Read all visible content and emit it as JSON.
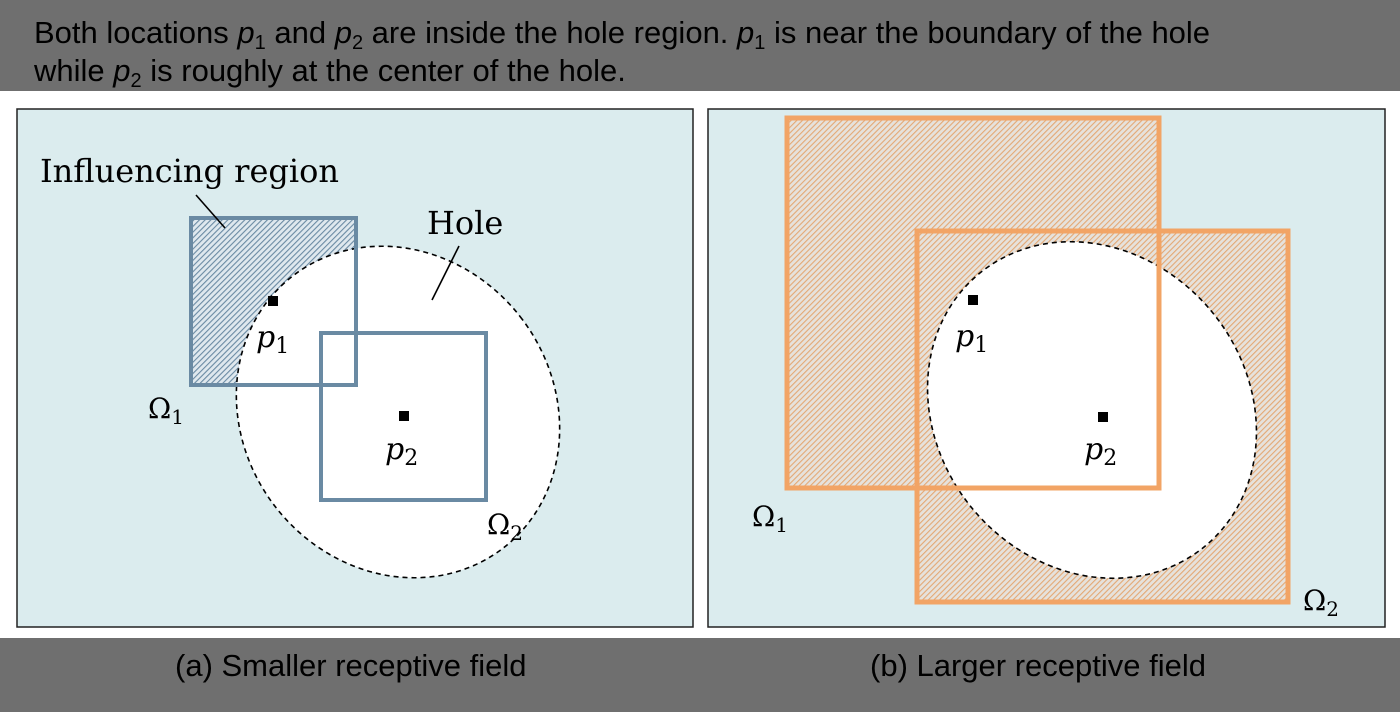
{
  "header": {
    "text_1": "Both locations ",
    "p": "p",
    "sub_1": "1",
    "sub_2": "2",
    "text_2": " and ",
    "text_3": " are inside the hole region. ",
    "text_4": " is near the boundary of the hole",
    "text_5": "while ",
    "text_6": " is roughly at the center of the hole."
  },
  "panel_a": {
    "caption": "(a) Smaller receptive field",
    "influencing_label": "Influencing region",
    "hole_label": "Hole",
    "p1": "p",
    "p1_sub": "1",
    "p2": "p",
    "p2_sub": "2",
    "omega1": "Ω",
    "omega1_sub": "1",
    "omega2": "Ω",
    "omega2_sub": "2",
    "box_color": "#6a8aa3"
  },
  "panel_b": {
    "caption": "(b) Larger receptive field",
    "p1": "p",
    "p1_sub": "1",
    "p2": "p",
    "p2_sub": "2",
    "omega1": "Ω",
    "omega1_sub": "1",
    "omega2": "Ω",
    "omega2_sub": "2",
    "box_color": "#f2a465"
  },
  "colors": {
    "panel_bg": "#dbecee",
    "hole_fill": "#ffffff",
    "frame_bg": "#6f6f6f"
  }
}
